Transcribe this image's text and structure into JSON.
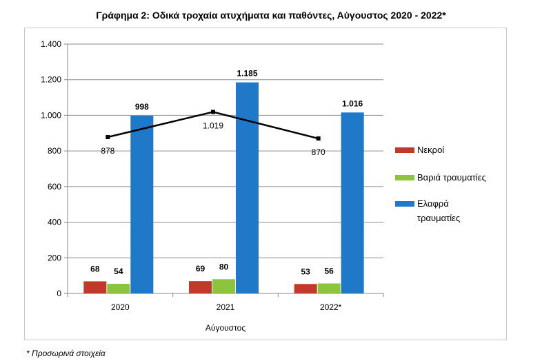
{
  "title": "Γράφημα 2: Οδικά τροχαία ατυχήματα και παθόντες, Αύγουστος 2020 - 2022*",
  "footnote": "* Προσωρινά στοιχεία",
  "chart_data": {
    "type": "bar",
    "title": "Γράφημα 2: Οδικά τροχαία ατυχήματα και παθόντες, Αύγουστος 2020 - 2022*",
    "xlabel": "Αύγουστος",
    "ylabel": "",
    "categories": [
      "2020",
      "2021",
      "2022*"
    ],
    "ylim": [
      0,
      1400
    ],
    "yticks": [
      0,
      200,
      400,
      600,
      800,
      1000,
      1200,
      1400
    ],
    "ytick_labels": [
      "0",
      "200",
      "400",
      "600",
      "800",
      "1.000",
      "1.200",
      "1.400"
    ],
    "grid": true,
    "legend_position": "right",
    "series": [
      {
        "name": "Νεκροί",
        "values": [
          68,
          69,
          53
        ],
        "labels": [
          "68",
          "69",
          "53"
        ],
        "color": "#c0392b"
      },
      {
        "name": "Βαριά τραυματίες",
        "values": [
          54,
          80,
          56
        ],
        "labels": [
          "54",
          "80",
          "56"
        ],
        "color": "#8cc43d"
      },
      {
        "name": "Ελαφρά τραυματίες",
        "values": [
          998,
          1185,
          1016
        ],
        "labels": [
          "998",
          "1.185",
          "1.016"
        ],
        "color": "#1f78c8"
      }
    ],
    "line_series": {
      "type": "line",
      "values": [
        878,
        1019,
        870
      ],
      "labels": [
        "878",
        "1.019",
        "870"
      ],
      "color": "#000000"
    }
  }
}
